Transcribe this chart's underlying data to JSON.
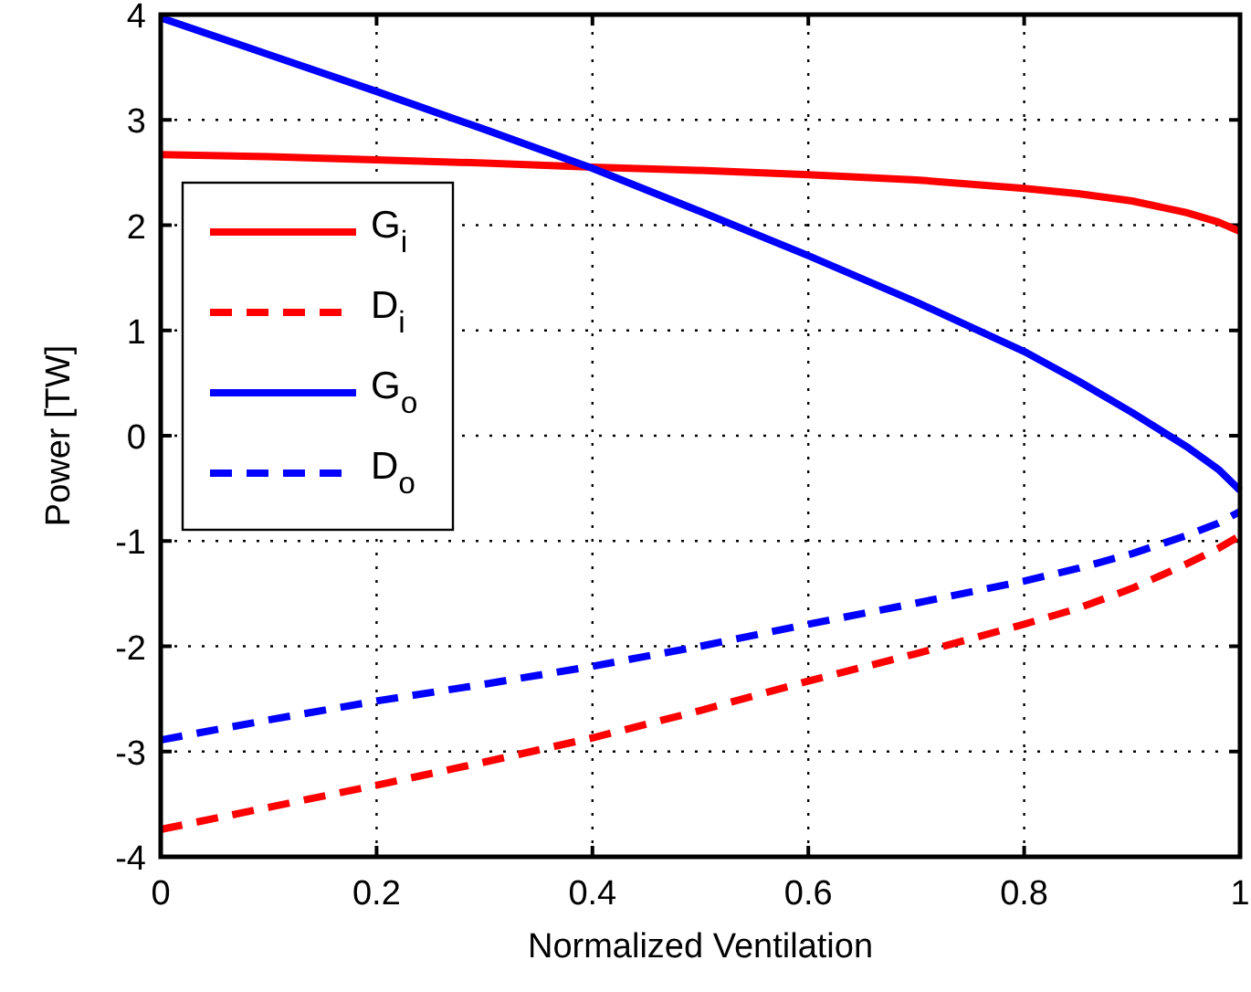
{
  "chart_data": {
    "type": "line",
    "xlabel": "Normalized Ventilation",
    "ylabel": "Power [TW]",
    "x": [
      0,
      0.1,
      0.2,
      0.3,
      0.4,
      0.5,
      0.6,
      0.7,
      0.8,
      0.85,
      0.9,
      0.95,
      0.98,
      1.0
    ],
    "series": [
      {
        "name": "G$_{i}$",
        "color": "#ff0000",
        "line_style": "solid",
        "values": [
          2.67,
          2.65,
          2.62,
          2.59,
          2.55,
          2.52,
          2.48,
          2.43,
          2.35,
          2.3,
          2.23,
          2.12,
          2.03,
          1.94
        ]
      },
      {
        "name": "D$_{i}$",
        "color": "#ff0000",
        "line_style": "dashed",
        "values": [
          -3.74,
          -3.53,
          -3.32,
          -3.1,
          -2.87,
          -2.61,
          -2.33,
          -2.07,
          -1.79,
          -1.64,
          -1.45,
          -1.22,
          -1.07,
          -0.95
        ]
      },
      {
        "name": "G$_{o}$",
        "color": "#0000ff",
        "line_style": "solid",
        "values": [
          3.97,
          3.62,
          3.27,
          2.91,
          2.54,
          2.13,
          1.71,
          1.27,
          0.8,
          0.52,
          0.22,
          -0.1,
          -0.32,
          -0.52
        ]
      },
      {
        "name": "D$_{o}$",
        "color": "#0000ff",
        "line_style": "dashed",
        "values": [
          -2.89,
          -2.7,
          -2.52,
          -2.36,
          -2.19,
          -2.0,
          -1.79,
          -1.59,
          -1.38,
          -1.26,
          -1.12,
          -0.95,
          -0.83,
          -0.72
        ]
      }
    ],
    "xlim": [
      0,
      1
    ],
    "ylim": [
      -4,
      4
    ],
    "xticks": [
      0,
      0.2,
      0.4,
      0.6,
      0.8,
      1
    ],
    "yticks": [
      -4,
      -3,
      -2,
      -1,
      0,
      1,
      2,
      3,
      4
    ],
    "grid": true,
    "legend": "left"
  }
}
